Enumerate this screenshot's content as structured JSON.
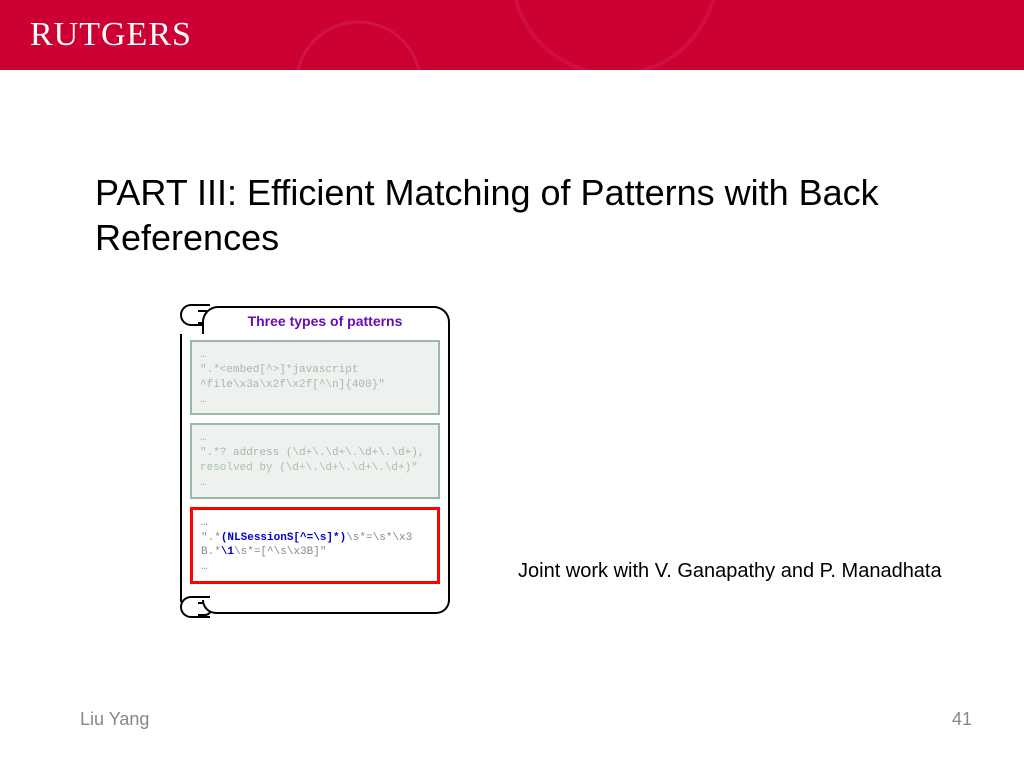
{
  "header": {
    "logo_text": "RUTGERS",
    "background_color": "#cc0033"
  },
  "slide": {
    "title": "PART III: Efficient Matching of Patterns with Back References",
    "joint_work": "Joint work with V. Ganapathy and P. Manadhata",
    "presenter": "Liu Yang",
    "page_number": "41"
  },
  "scroll": {
    "heading": "Three types of patterns",
    "heading_color": "#6a0dad",
    "panes": [
      {
        "active": false,
        "lines": [
          "…",
          "\".*<embed[^>]*javascript",
          "^file\\x3a\\x2f\\x2f[^\\n]{400}\"",
          "…"
        ]
      },
      {
        "active": false,
        "lines": [
          "…",
          "\".*? address (\\d+\\.\\d+\\.\\d+\\.\\d+),",
          "resolved by (\\d+\\.\\d+\\.\\d+\\.\\d+)\"",
          "…"
        ]
      },
      {
        "active": true,
        "highlight_color": "#ff0000",
        "line1_pre": "…",
        "line2_pre": "\".*",
        "line2_kw": "(NLSessionS[^=\\s]*)",
        "line2_post": "\\s*=\\s*\\x3",
        "line3_pre": "B.*",
        "line3_kw": "\\1",
        "line3_post": "\\s*=[^\\s\\x3B]\"",
        "line4": "…"
      }
    ]
  }
}
